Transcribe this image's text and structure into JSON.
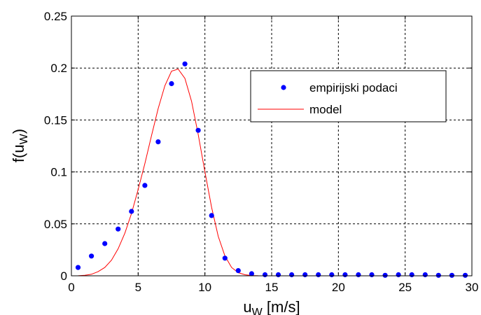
{
  "chart_data": {
    "type": "scatter",
    "xlabel": {
      "base": "u",
      "sub": "W",
      "rest": " [m/s]"
    },
    "ylabel": {
      "base": "f(u",
      "sub": "W",
      "rest": ")"
    },
    "xlim": [
      0,
      30
    ],
    "ylim": [
      0,
      0.25
    ],
    "xticks": [
      0,
      5,
      10,
      15,
      20,
      25,
      30
    ],
    "xtick_labels": [
      "0",
      "5",
      "10",
      "15",
      "20",
      "25",
      "30"
    ],
    "yticks": [
      0,
      0.05,
      0.1,
      0.15,
      0.2,
      0.25
    ],
    "ytick_labels": [
      "0",
      "0.05",
      "0.1",
      "0.15",
      "0.2",
      "0.25"
    ],
    "grid": true,
    "legend": {
      "placement": "upper-right-inner"
    },
    "series": [
      {
        "name": "empirijski podaci",
        "kind": "markers",
        "color": "#0000ff",
        "x": [
          0.5,
          1.5,
          2.5,
          3.5,
          4.5,
          5.5,
          6.5,
          7.5,
          8.5,
          9.5,
          10.5,
          11.5,
          12.5,
          13.5,
          14.5,
          15.5,
          16.5,
          17.5,
          18.5,
          19.5,
          20.5,
          21.5,
          22.5,
          23.5,
          24.5,
          25.5,
          26.5,
          27.5,
          28.5,
          29.5
        ],
        "y": [
          0.008,
          0.019,
          0.031,
          0.045,
          0.062,
          0.087,
          0.129,
          0.185,
          0.204,
          0.14,
          0.058,
          0.017,
          0.005,
          0.002,
          0.001,
          0.001,
          0.001,
          0.001,
          0.001,
          0.001,
          0.001,
          0.001,
          0.001,
          0.0005,
          0.001,
          0.001,
          0.001,
          0.0005,
          0.0005,
          0.0005
        ]
      },
      {
        "name": "model",
        "kind": "line",
        "color": "#ff0000",
        "x": [
          0,
          0.5,
          1,
          1.5,
          2,
          2.5,
          3,
          3.5,
          4,
          4.5,
          5,
          5.5,
          6,
          6.5,
          7,
          7.5,
          8,
          8.5,
          9,
          9.5,
          10,
          10.5,
          11,
          11.5,
          12,
          12.5,
          13,
          13.5,
          14,
          15,
          16,
          18,
          20,
          25,
          30
        ],
        "y": [
          0,
          0.0001,
          0.0005,
          0.0015,
          0.004,
          0.008,
          0.015,
          0.026,
          0.041,
          0.06,
          0.083,
          0.108,
          0.135,
          0.161,
          0.183,
          0.197,
          0.199,
          0.19,
          0.168,
          0.136,
          0.1,
          0.066,
          0.038,
          0.019,
          0.008,
          0.003,
          0.001,
          0.0003,
          0.0001,
          0,
          0,
          0,
          0,
          0,
          0
        ]
      }
    ]
  }
}
